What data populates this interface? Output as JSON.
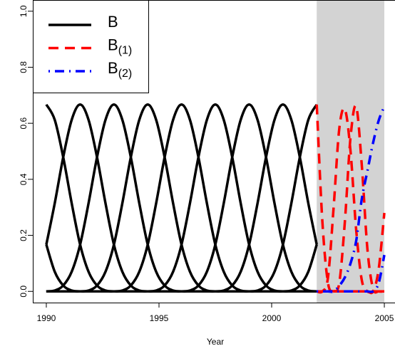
{
  "chart_data": {
    "type": "line",
    "xlabel": "Year",
    "xlim": [
      1989.4,
      2005.6
    ],
    "ylim": [
      -0.04,
      1.04
    ],
    "xticks": [
      1990,
      1995,
      2000,
      2005
    ],
    "yticks": [
      {
        "value": 0,
        "label": "0.0"
      },
      {
        "value": 0.2,
        "label": "0.2"
      },
      {
        "value": 0.4,
        "label": "0.4"
      },
      {
        "value": 0.6,
        "label": "0.6"
      },
      {
        "value": 0.8,
        "label": "0.8"
      },
      {
        "value": 1,
        "label": "1.0"
      }
    ],
    "shaded_region": [
      2002,
      2005
    ],
    "legend": "topleft",
    "series": [
      {
        "name": "B",
        "color": "#000000",
        "dash": "solid",
        "x": [
          1990,
          1990.375,
          1990.75,
          1991.125,
          1991.5,
          1991.875,
          1992.25,
          1992.625,
          1993,
          1993.375,
          1993.75,
          1994.125,
          1994.5,
          1994.875,
          1995.25,
          1995.625,
          1996,
          1996.375,
          1996.75,
          1997.125,
          1997.5,
          1997.875,
          1998.25,
          1998.625,
          1999,
          1999.375,
          1999.75,
          2000.125,
          2000.5,
          2000.875,
          2001.25,
          2001.625,
          2002
        ],
        "values": [
          [
            0.167,
            0.07,
            0.021,
            0.003,
            0,
            0,
            0,
            0,
            0,
            0,
            0,
            0,
            0,
            0,
            0,
            0,
            0,
            0,
            0,
            0,
            0,
            0,
            0,
            0,
            0,
            0,
            0,
            0,
            0,
            0,
            0,
            0,
            0
          ],
          [
            0.667,
            0.612,
            0.479,
            0.315,
            0.167,
            0.07,
            0.021,
            0.003,
            0,
            0,
            0,
            0,
            0,
            0,
            0,
            0,
            0,
            0,
            0,
            0,
            0,
            0,
            0,
            0,
            0,
            0,
            0,
            0,
            0,
            0,
            0,
            0,
            0
          ],
          [
            0.167,
            0.315,
            0.479,
            0.612,
            0.667,
            0.612,
            0.479,
            0.315,
            0.167,
            0.07,
            0.021,
            0.003,
            0,
            0,
            0,
            0,
            0,
            0,
            0,
            0,
            0,
            0,
            0,
            0,
            0,
            0,
            0,
            0,
            0,
            0,
            0,
            0,
            0
          ],
          [
            0,
            0.003,
            0.021,
            0.07,
            0.167,
            0.315,
            0.479,
            0.612,
            0.667,
            0.612,
            0.479,
            0.315,
            0.167,
            0.07,
            0.021,
            0.003,
            0,
            0,
            0,
            0,
            0,
            0,
            0,
            0,
            0,
            0,
            0,
            0,
            0,
            0,
            0,
            0,
            0
          ],
          [
            0,
            0,
            0,
            0,
            0,
            0.003,
            0.021,
            0.07,
            0.167,
            0.315,
            0.479,
            0.612,
            0.667,
            0.612,
            0.479,
            0.315,
            0.167,
            0.07,
            0.021,
            0.003,
            0,
            0,
            0,
            0,
            0,
            0,
            0,
            0,
            0,
            0,
            0,
            0,
            0
          ],
          [
            0,
            0,
            0,
            0,
            0,
            0,
            0,
            0,
            0,
            0.003,
            0.021,
            0.07,
            0.167,
            0.315,
            0.479,
            0.612,
            0.667,
            0.612,
            0.479,
            0.315,
            0.167,
            0.07,
            0.021,
            0.003,
            0,
            0,
            0,
            0,
            0,
            0,
            0,
            0,
            0
          ],
          [
            0,
            0,
            0,
            0,
            0,
            0,
            0,
            0,
            0,
            0,
            0,
            0,
            0,
            0.003,
            0.021,
            0.07,
            0.167,
            0.315,
            0.479,
            0.612,
            0.667,
            0.612,
            0.479,
            0.315,
            0.167,
            0.07,
            0.021,
            0.003,
            0,
            0,
            0,
            0,
            0
          ],
          [
            0,
            0,
            0,
            0,
            0,
            0,
            0,
            0,
            0,
            0,
            0,
            0,
            0,
            0,
            0,
            0,
            0,
            0.003,
            0.021,
            0.07,
            0.167,
            0.315,
            0.479,
            0.612,
            0.667,
            0.612,
            0.479,
            0.315,
            0.167,
            0.07,
            0.021,
            0.003,
            0
          ],
          [
            0,
            0,
            0,
            0,
            0,
            0,
            0,
            0,
            0,
            0,
            0,
            0,
            0,
            0,
            0,
            0,
            0,
            0,
            0,
            0,
            0,
            0.003,
            0.021,
            0.07,
            0.167,
            0.315,
            0.479,
            0.612,
            0.667,
            0.612,
            0.479,
            0.315,
            0.167
          ],
          [
            0,
            0,
            0,
            0,
            0,
            0,
            0,
            0,
            0,
            0,
            0,
            0,
            0,
            0,
            0,
            0,
            0,
            0,
            0,
            0,
            0,
            0,
            0,
            0,
            0,
            0.003,
            0.021,
            0.07,
            0.167,
            0.315,
            0.479,
            0.612,
            0.667
          ],
          [
            0,
            0,
            0,
            0,
            0,
            0,
            0,
            0,
            0,
            0,
            0,
            0,
            0,
            0,
            0,
            0,
            0,
            0,
            0,
            0,
            0,
            0,
            0,
            0,
            0,
            0,
            0,
            0,
            0,
            0.003,
            0.021,
            0.07,
            0.167
          ]
        ]
      },
      {
        "name": "B(1)",
        "color": "#ff0000",
        "dash": "dashed",
        "x": [
          2002,
          2002.25,
          2002.5,
          2002.75,
          2003,
          2003.25,
          2003.5,
          2003.75,
          2004,
          2004.25,
          2004.5,
          2004.75,
          2005
        ],
        "values": [
          [
            0.667,
            0.25,
            0.03,
            0,
            0,
            0,
            0,
            0,
            0,
            0,
            0,
            0,
            0
          ],
          [
            0,
            0,
            0.05,
            0.3,
            0.58,
            0.65,
            0.5,
            0.22,
            0.04,
            0,
            0,
            0,
            0
          ],
          [
            0,
            0,
            0,
            0,
            0.03,
            0.25,
            0.55,
            0.66,
            0.45,
            0.15,
            0.01,
            0,
            0
          ],
          [
            0,
            0,
            0,
            0,
            0,
            0,
            0,
            0,
            0,
            0,
            0,
            0.08,
            0.28
          ]
        ]
      },
      {
        "name": "B(2)",
        "color": "#0000ff",
        "dash": "dotdash",
        "x": [
          2002,
          2002.25,
          2002.5,
          2002.75,
          2003,
          2003.25,
          2003.5,
          2003.75,
          2004,
          2004.25,
          2004.5,
          2004.75,
          2005
        ],
        "values": [
          [
            0,
            0,
            0,
            0,
            0.02,
            0.05,
            0.1,
            0.18,
            0.33,
            0.43,
            0.53,
            0.61,
            0.66
          ],
          [
            0,
            0,
            0,
            0,
            0,
            0,
            0,
            0,
            0,
            0,
            0,
            0.03,
            0.13
          ]
        ]
      }
    ]
  }
}
